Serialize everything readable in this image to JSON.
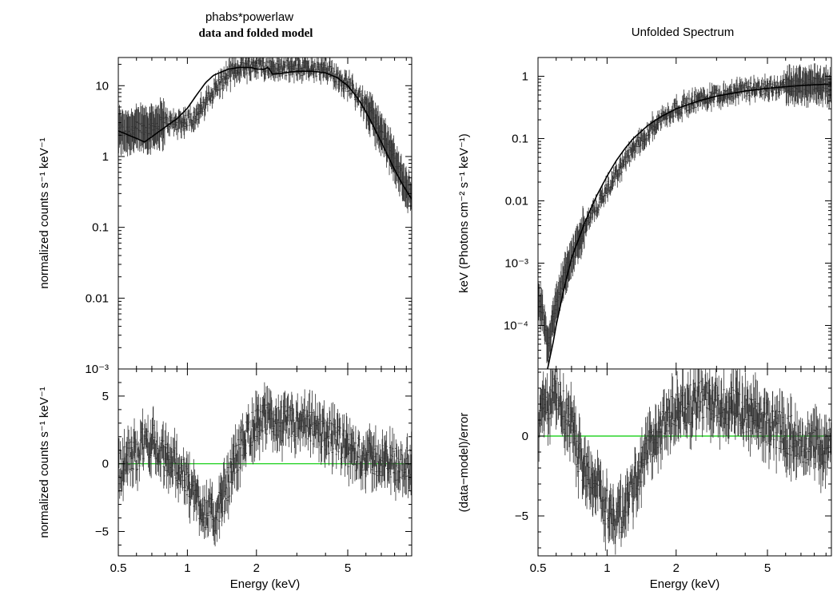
{
  "figure": {
    "left_title_line1": "phabs*powerlaw",
    "left_title_line2": "data and folded model",
    "right_title": "Unfolded Spectrum",
    "colors": {
      "data": "#333333",
      "model": "#000000",
      "zero_line": "#00cc00"
    }
  },
  "chart_data": [
    {
      "id": "left_top",
      "type": "scatter",
      "title": "phabs*powerlaw data and folded model",
      "xlabel": "",
      "ylabel": "normalized counts s⁻¹ keV⁻¹",
      "xscale": "log",
      "yscale": "log",
      "xlim": [
        0.5,
        9.5
      ],
      "ylim": [
        0.001,
        25
      ],
      "yticks": [
        {
          "value": 10,
          "label": "10"
        },
        {
          "value": 1,
          "label": "1"
        },
        {
          "value": 0.1,
          "label": "0.1"
        },
        {
          "value": 0.01,
          "label": "0.01"
        },
        {
          "value": 0.001,
          "label": "10⁻³"
        }
      ],
      "model": {
        "x": [
          0.5,
          0.6,
          0.65,
          0.7,
          0.8,
          0.9,
          1.0,
          1.1,
          1.2,
          1.3,
          1.5,
          1.7,
          1.9,
          2.0,
          2.15,
          2.25,
          2.35,
          2.5,
          3.0,
          3.5,
          4.0,
          4.5,
          5.0,
          5.5,
          6.0,
          6.5,
          7.0,
          7.5,
          8.0,
          8.5,
          9.0,
          9.5
        ],
        "y": [
          2.3,
          1.8,
          1.6,
          1.9,
          2.6,
          3.4,
          4.8,
          7.5,
          11.0,
          14.0,
          17.0,
          18.2,
          18.0,
          17.2,
          17.0,
          18.2,
          14.5,
          14.8,
          16.0,
          16.0,
          15.2,
          13.0,
          10.0,
          6.8,
          4.3,
          2.6,
          1.6,
          1.0,
          0.65,
          0.45,
          0.33,
          0.25
        ]
      },
      "data_trend": {
        "x": [
          0.5,
          0.6,
          0.7,
          0.8,
          0.9,
          1.0,
          1.1,
          1.2,
          1.3,
          1.5,
          1.7,
          1.9,
          2.0,
          2.2,
          2.5,
          3.0,
          3.5,
          4.0,
          4.5,
          5.0,
          5.5,
          6.0,
          6.5,
          7.0,
          7.5,
          8.0,
          8.5,
          9.0,
          9.5
        ],
        "y": [
          2.3,
          2.4,
          2.6,
          3.0,
          3.0,
          3.2,
          3.8,
          5.5,
          8.5,
          14.0,
          18.5,
          19.5,
          19.0,
          18.5,
          17.5,
          18.0,
          17.5,
          16.0,
          13.5,
          10.5,
          7.5,
          5.0,
          3.2,
          2.0,
          1.3,
          0.85,
          0.55,
          0.38,
          0.28
        ]
      }
    },
    {
      "id": "left_bottom",
      "type": "scatter",
      "title": "",
      "xlabel": "Energy (keV)",
      "ylabel": "normalized counts s⁻¹ keV⁻¹",
      "xscale": "log",
      "yscale": "linear",
      "xlim": [
        0.5,
        9.5
      ],
      "ylim": [
        -6.8,
        7.0
      ],
      "xticks": [
        {
          "value": 0.5,
          "label": "0.5"
        },
        {
          "value": 1,
          "label": "1"
        },
        {
          "value": 2,
          "label": "2"
        },
        {
          "value": 5,
          "label": "5"
        }
      ],
      "yticks": [
        {
          "value": 5,
          "label": "5"
        },
        {
          "value": 0,
          "label": "0"
        },
        {
          "value": -5,
          "label": "−5"
        }
      ],
      "zero_line": 0,
      "data_trend": {
        "x": [
          0.5,
          0.55,
          0.6,
          0.65,
          0.7,
          0.75,
          0.8,
          0.9,
          1.0,
          1.1,
          1.2,
          1.3,
          1.4,
          1.5,
          1.6,
          1.8,
          2.0,
          2.3,
          2.6,
          3.0,
          3.5,
          4.0,
          4.5,
          5.0,
          6.0,
          7.0,
          8.0,
          9.5
        ],
        "y": [
          -0.3,
          0.3,
          0.8,
          1.5,
          1.8,
          0.8,
          0.3,
          0.0,
          -1.5,
          -2.5,
          -3.5,
          -4.0,
          -3.0,
          -1.5,
          0.0,
          2.0,
          3.0,
          3.2,
          3.0,
          2.8,
          2.6,
          2.2,
          1.6,
          1.0,
          0.5,
          0.2,
          0.0,
          -0.1
        ]
      }
    },
    {
      "id": "right_top",
      "type": "scatter",
      "title": "Unfolded Spectrum",
      "xlabel": "",
      "ylabel": "keV (Photons cm⁻² s⁻¹ keV⁻¹)",
      "xscale": "log",
      "yscale": "log",
      "xlim": [
        0.5,
        9.5
      ],
      "ylim": [
        2e-05,
        2.0
      ],
      "yticks": [
        {
          "value": 1,
          "label": "1"
        },
        {
          "value": 0.1,
          "label": "0.1"
        },
        {
          "value": 0.01,
          "label": "0.01"
        },
        {
          "value": 0.001,
          "label": "10⁻³"
        },
        {
          "value": 0.0001,
          "label": "10⁻⁴"
        }
      ],
      "model": {
        "x": [
          0.55,
          0.58,
          0.6,
          0.65,
          0.7,
          0.8,
          0.9,
          1.0,
          1.1,
          1.2,
          1.3,
          1.5,
          1.7,
          2.0,
          2.5,
          3.0,
          4.0,
          5.0,
          6.0,
          7.0,
          8.0,
          9.5
        ],
        "y": [
          2e-05,
          5e-05,
          0.0001,
          0.0004,
          0.0012,
          0.0045,
          0.012,
          0.025,
          0.045,
          0.07,
          0.1,
          0.16,
          0.22,
          0.3,
          0.4,
          0.48,
          0.58,
          0.64,
          0.68,
          0.71,
          0.73,
          0.75
        ]
      },
      "data_trend": {
        "x": [
          0.5,
          0.52,
          0.55,
          0.6,
          0.65,
          0.7,
          0.8,
          0.9,
          1.0,
          1.1,
          1.2,
          1.3,
          1.5,
          1.7,
          2.0,
          2.5,
          3.0,
          4.0,
          5.0,
          6.0,
          7.0,
          8.0,
          9.5
        ],
        "y": [
          0.0002,
          0.0002,
          5e-05,
          0.0002,
          0.0006,
          0.0012,
          0.004,
          0.008,
          0.015,
          0.027,
          0.045,
          0.065,
          0.13,
          0.2,
          0.3,
          0.42,
          0.5,
          0.6,
          0.65,
          0.7,
          0.72,
          0.76,
          0.7
        ]
      }
    },
    {
      "id": "right_bottom",
      "type": "scatter",
      "title": "",
      "xlabel": "Energy (keV)",
      "ylabel": "(data−model)/error",
      "xscale": "log",
      "yscale": "linear",
      "xlim": [
        0.5,
        9.5
      ],
      "ylim": [
        -7.5,
        4.2
      ],
      "xticks": [
        {
          "value": 0.5,
          "label": "0.5"
        },
        {
          "value": 1,
          "label": "1"
        },
        {
          "value": 2,
          "label": "2"
        },
        {
          "value": 5,
          "label": "5"
        }
      ],
      "yticks": [
        {
          "value": 0,
          "label": "0"
        },
        {
          "value": -5,
          "label": "−5"
        }
      ],
      "zero_line": 0,
      "data_trend": {
        "x": [
          0.5,
          0.55,
          0.6,
          0.65,
          0.7,
          0.75,
          0.8,
          0.9,
          1.0,
          1.1,
          1.2,
          1.3,
          1.4,
          1.5,
          1.6,
          1.8,
          2.0,
          2.3,
          2.6,
          3.0,
          3.5,
          4.0,
          5.0,
          6.0,
          7.0,
          8.0,
          9.5
        ],
        "y": [
          1.0,
          2.0,
          2.5,
          1.5,
          0.5,
          -1.0,
          -2.0,
          -3.0,
          -4.5,
          -5.2,
          -4.5,
          -3.0,
          -2.0,
          -1.0,
          0.0,
          0.8,
          1.5,
          2.0,
          2.2,
          2.0,
          1.8,
          1.3,
          0.8,
          0.2,
          -0.3,
          -0.6,
          -0.8
        ]
      }
    }
  ]
}
